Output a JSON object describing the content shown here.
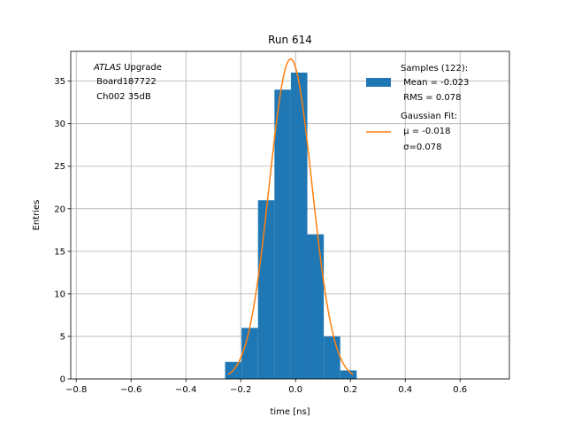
{
  "chart_data": {
    "type": "bar",
    "title": "Run 614",
    "xlabel": "time [ns]",
    "ylabel": "Entries",
    "xlim": [
      -0.82,
      0.78
    ],
    "ylim": [
      0,
      38.5
    ],
    "grid": true,
    "x_ticks": [
      -0.8,
      -0.6,
      -0.4,
      -0.2,
      0.0,
      0.2,
      0.4,
      0.6
    ],
    "x_tick_labels": [
      "−0.8",
      "−0.6",
      "−0.4",
      "−0.2",
      "0.0",
      "0.2",
      "0.4",
      "0.6"
    ],
    "y_ticks": [
      0,
      5,
      10,
      15,
      20,
      25,
      30,
      35
    ],
    "y_tick_labels": [
      "0",
      "5",
      "10",
      "15",
      "20",
      "25",
      "30",
      "35"
    ],
    "histogram": {
      "name": "Samples (122):",
      "color": "#1f77b4",
      "bin_edges": [
        -0.257,
        -0.197,
        -0.137,
        -0.077,
        -0.017,
        0.043,
        0.103,
        0.163,
        0.223
      ],
      "counts": [
        2,
        6,
        21,
        34,
        36,
        17,
        5,
        1
      ]
    },
    "fit": {
      "name": "Gaussian Fit:",
      "color": "#ff7f0e",
      "mu": -0.018,
      "sigma": 0.078,
      "amplitude": 37.6,
      "x_range": [
        -0.245,
        0.21
      ]
    },
    "legend": {
      "position": "top-right",
      "entries": [
        {
          "lines": [
            "Samples (122):",
            " Mean = -0.023",
            " RMS = 0.078"
          ]
        },
        {
          "lines": [
            "Gaussian Fit:",
            " μ = -0.018",
            " σ=0.078"
          ]
        }
      ]
    },
    "annotation": {
      "position": "top-left",
      "italic": "ATLAS",
      "line1_rest": " Upgrade",
      "line2": " Board187722",
      "line3": " Ch002 35dB"
    }
  }
}
